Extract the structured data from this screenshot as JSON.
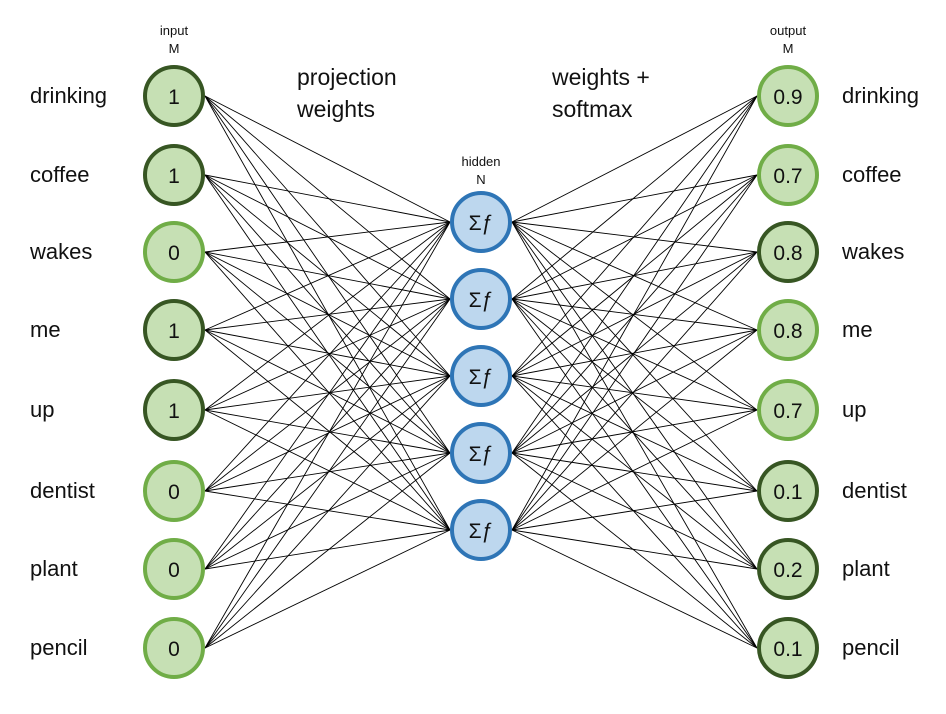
{
  "input_layer": {
    "label": "input",
    "size": "M",
    "nodes": [
      {
        "word": "drinking",
        "value": "1",
        "active": true
      },
      {
        "word": "coffee",
        "value": "1",
        "active": true
      },
      {
        "word": "wakes",
        "value": "0",
        "active": false
      },
      {
        "word": "me",
        "value": "1",
        "active": true
      },
      {
        "word": "up",
        "value": "1",
        "active": true
      },
      {
        "word": "dentist",
        "value": "0",
        "active": false
      },
      {
        "word": "plant",
        "value": "0",
        "active": false
      },
      {
        "word": "pencil",
        "value": "0",
        "active": false
      }
    ]
  },
  "hidden_layer": {
    "label": "hidden",
    "size": "N",
    "node_symbol": "Σƒ",
    "count": 5
  },
  "output_layer": {
    "label": "output",
    "size": "M",
    "nodes": [
      {
        "word": "drinking",
        "value": "0.9",
        "emphasis": false
      },
      {
        "word": "coffee",
        "value": "0.7",
        "emphasis": false
      },
      {
        "word": "wakes",
        "value": "0.8",
        "emphasis": true
      },
      {
        "word": "me",
        "value": "0.8",
        "emphasis": false
      },
      {
        "word": "up",
        "value": "0.7",
        "emphasis": false
      },
      {
        "word": "dentist",
        "value": "0.1",
        "emphasis": true
      },
      {
        "word": "plant",
        "value": "0.2",
        "emphasis": true
      },
      {
        "word": "pencil",
        "value": "0.1",
        "emphasis": true
      }
    ]
  },
  "annotations": {
    "projection_line1": "projection",
    "projection_line2": "weights",
    "softmax_line1": "weights +",
    "softmax_line2": "softmax"
  },
  "colors": {
    "green_fill": "#c6e0b4",
    "green_border_light": "#70ad47",
    "green_border_dark": "#375623",
    "blue_fill": "#bdd7ee",
    "blue_border": "#2e75b6",
    "edge": "#000000"
  }
}
